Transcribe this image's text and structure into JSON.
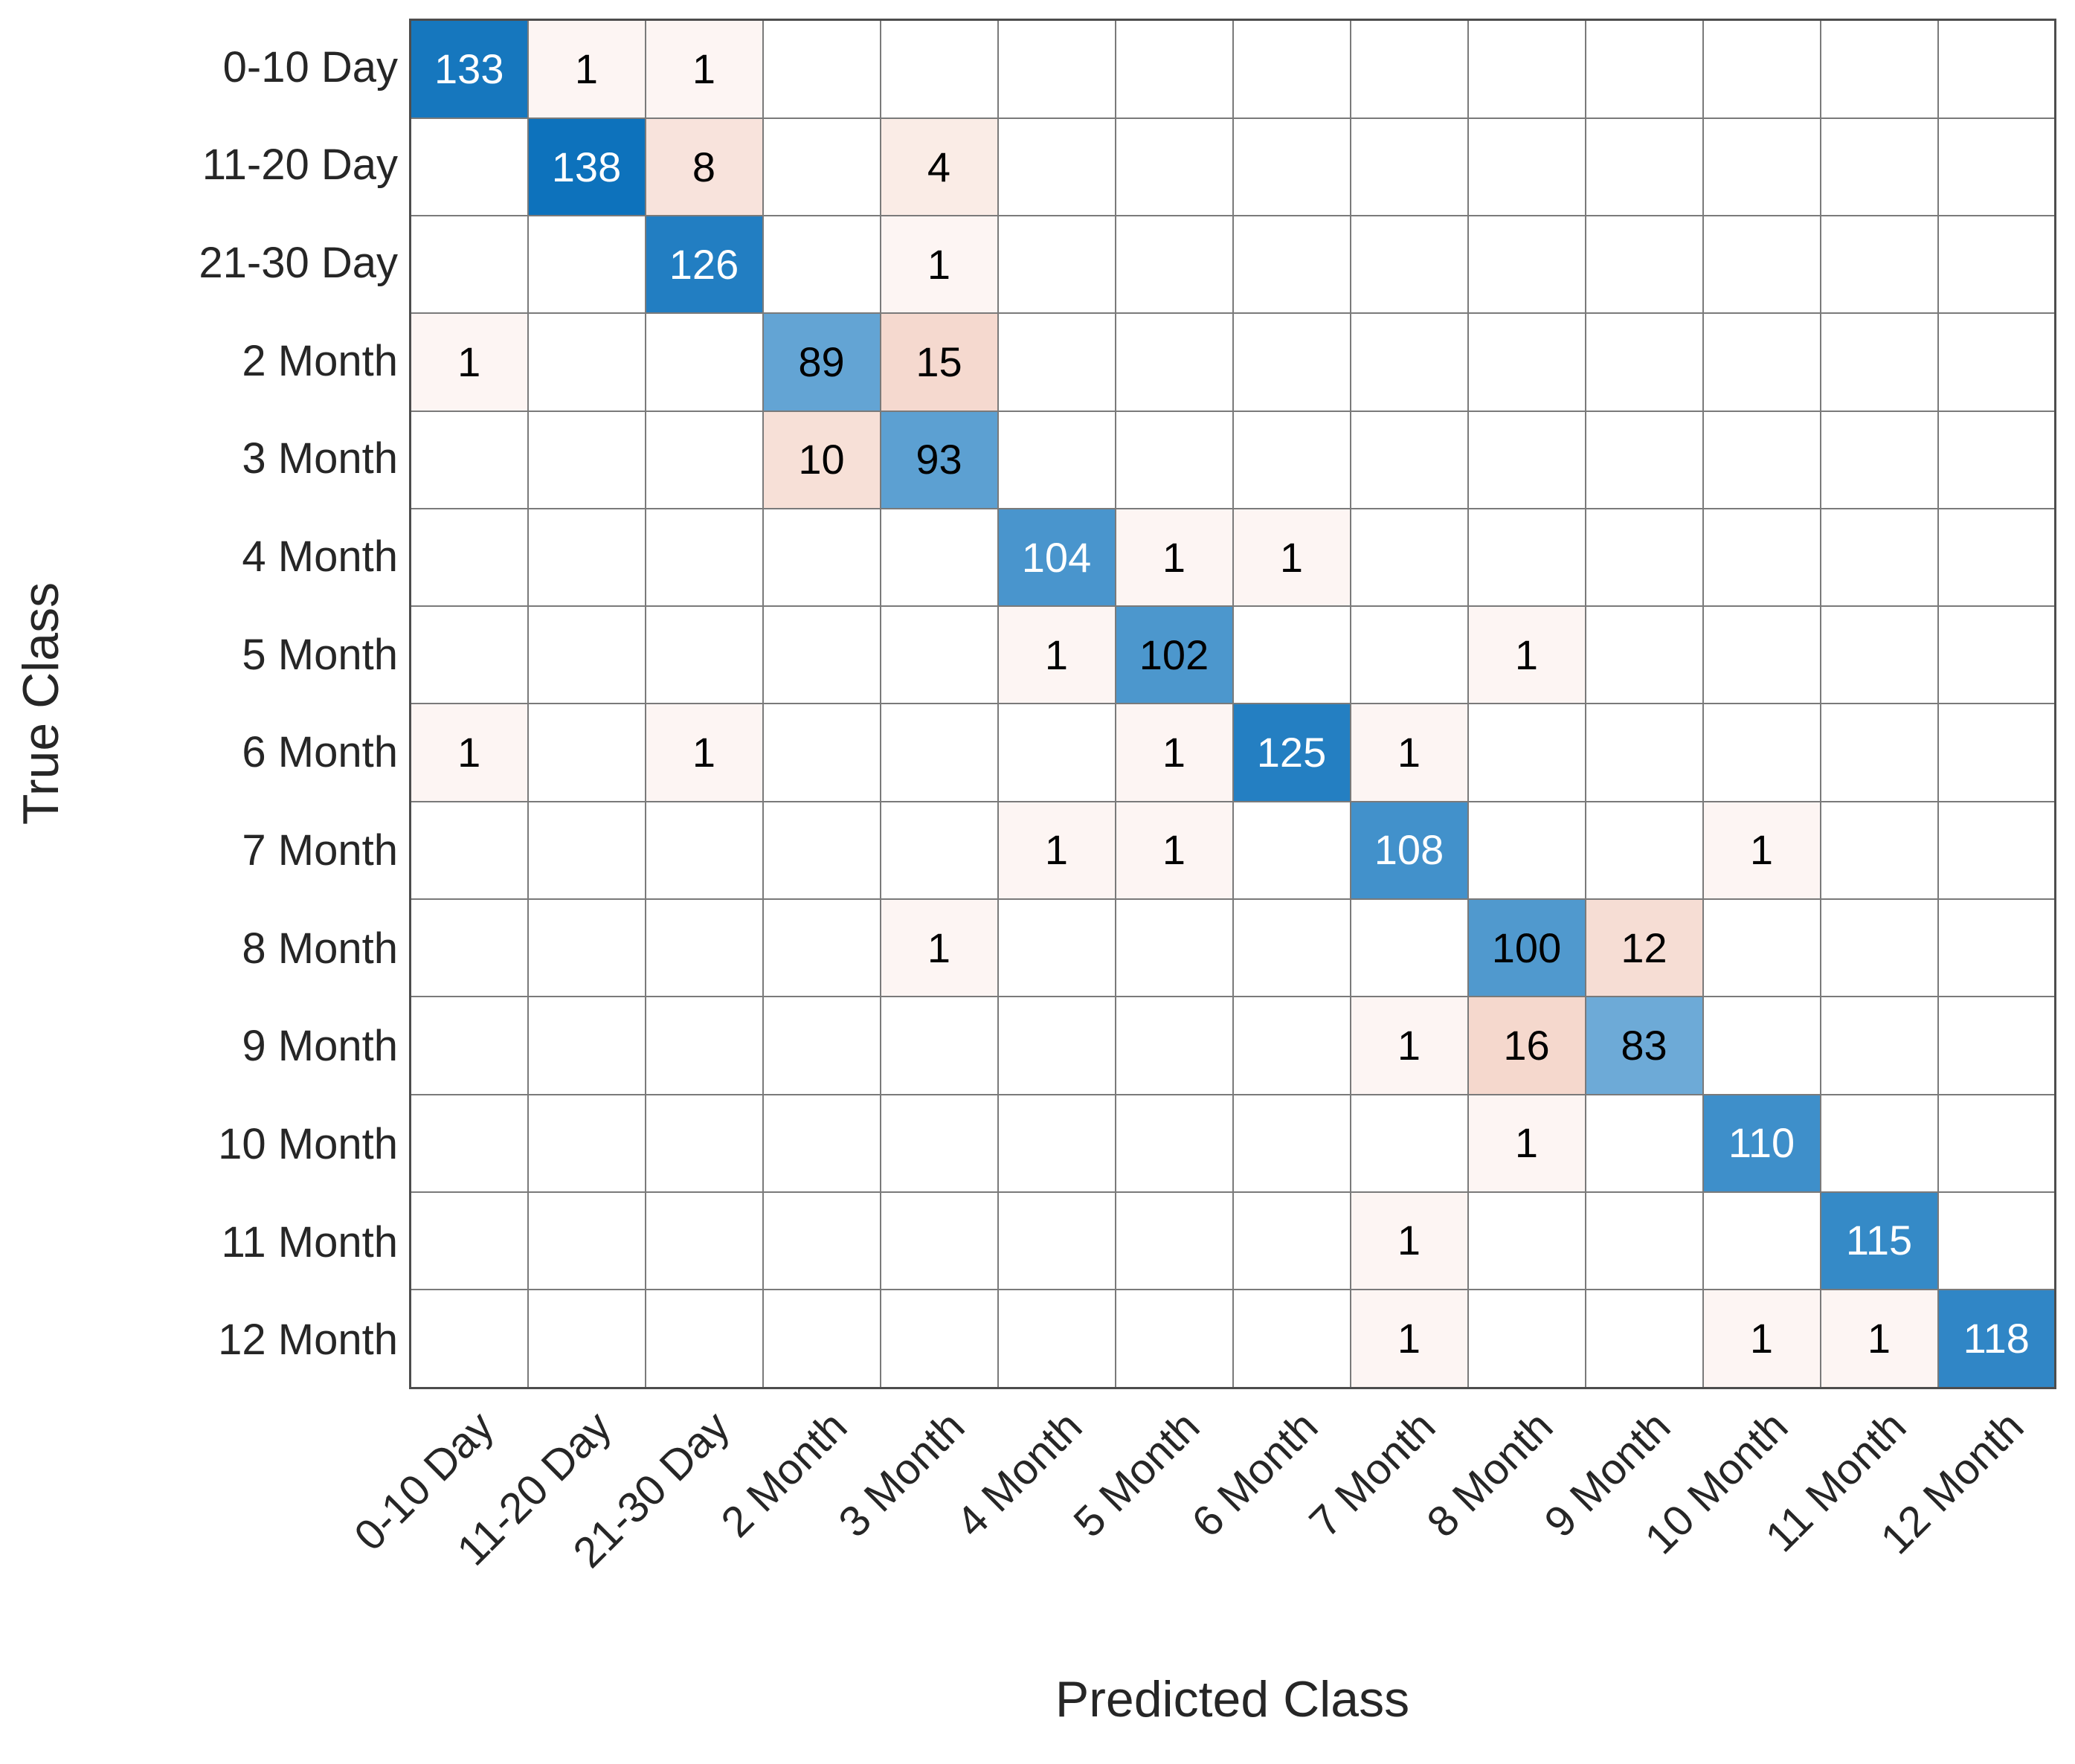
{
  "chart_data": {
    "type": "heatmap",
    "subtype": "confusion-matrix",
    "title": "",
    "xlabel": "Predicted Class",
    "ylabel": "True Class",
    "classes": [
      "0-10 Day",
      "11-20 Day",
      "21-30 Day",
      "2 Month",
      "3 Month",
      "4 Month",
      "5 Month",
      "6 Month",
      "7 Month",
      "8 Month",
      "9 Month",
      "10 Month",
      "11 Month",
      "12 Month"
    ],
    "matrix": [
      [
        133,
        1,
        1,
        0,
        0,
        0,
        0,
        0,
        0,
        0,
        0,
        0,
        0,
        0
      ],
      [
        0,
        138,
        8,
        0,
        4,
        0,
        0,
        0,
        0,
        0,
        0,
        0,
        0,
        0
      ],
      [
        0,
        0,
        126,
        0,
        1,
        0,
        0,
        0,
        0,
        0,
        0,
        0,
        0,
        0
      ],
      [
        1,
        0,
        0,
        89,
        15,
        0,
        0,
        0,
        0,
        0,
        0,
        0,
        0,
        0
      ],
      [
        0,
        0,
        0,
        10,
        93,
        0,
        0,
        0,
        0,
        0,
        0,
        0,
        0,
        0
      ],
      [
        0,
        0,
        0,
        0,
        0,
        104,
        1,
        1,
        0,
        0,
        0,
        0,
        0,
        0
      ],
      [
        0,
        0,
        0,
        0,
        0,
        1,
        102,
        0,
        0,
        1,
        0,
        0,
        0,
        0
      ],
      [
        1,
        0,
        1,
        0,
        0,
        0,
        1,
        125,
        1,
        0,
        0,
        0,
        0,
        0
      ],
      [
        0,
        0,
        0,
        0,
        0,
        1,
        1,
        0,
        108,
        0,
        0,
        1,
        0,
        0
      ],
      [
        0,
        0,
        0,
        0,
        1,
        0,
        0,
        0,
        0,
        100,
        12,
        0,
        0,
        0
      ],
      [
        0,
        0,
        0,
        0,
        0,
        0,
        0,
        0,
        1,
        16,
        83,
        0,
        0,
        0
      ],
      [
        0,
        0,
        0,
        0,
        0,
        0,
        0,
        0,
        0,
        1,
        0,
        110,
        0,
        0
      ],
      [
        0,
        0,
        0,
        0,
        0,
        0,
        0,
        0,
        1,
        0,
        0,
        0,
        115,
        0
      ],
      [
        0,
        0,
        0,
        0,
        0,
        0,
        0,
        0,
        1,
        0,
        0,
        1,
        1,
        118
      ]
    ],
    "max_diagonal": 138,
    "max_offdiag": 16,
    "white_text_min": 104,
    "colors": {
      "diagonal_base": "#0d72bc",
      "offdiag_base": "#f5d8cd",
      "empty_cell": "#ffffff",
      "grid_line": "#7a7a7a",
      "outer_border": "#4d4d4d",
      "axis_text": "#262626",
      "cell_text_dark": "#000000",
      "cell_text_light": "#ffffff"
    },
    "legend": "none",
    "grid": true
  }
}
